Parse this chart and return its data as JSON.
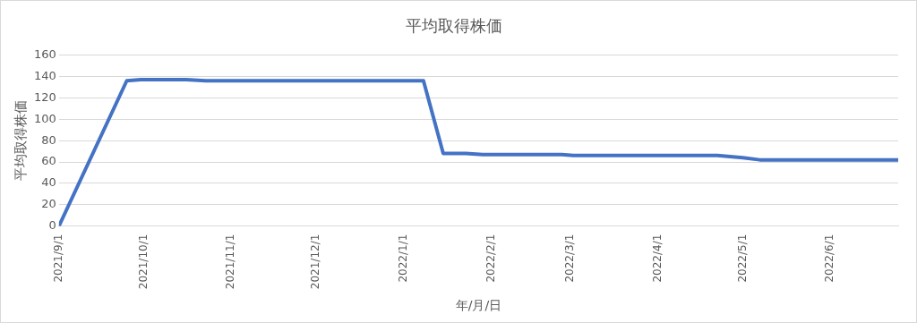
{
  "chart_data": {
    "type": "line",
    "title": "平均取得株価",
    "xlabel": "年/月/日",
    "ylabel": "平均取得株価",
    "x": [
      "2021-09-01",
      "2021-09-25",
      "2021-09-30",
      "2021-10-16",
      "2021-10-23",
      "2022-01-08",
      "2022-01-15",
      "2022-01-23",
      "2022-01-29",
      "2022-02-26",
      "2022-03-02",
      "2022-04-22",
      "2022-05-01",
      "2022-05-07",
      "2022-06-25"
    ],
    "series": [
      {
        "color": "#4472c4",
        "values": [
          0,
          136,
          137,
          137,
          136,
          136,
          68,
          68,
          67,
          67,
          66,
          66,
          64,
          62,
          62
        ]
      }
    ],
    "xlim": [
      "2021-09-01",
      "2022-06-25"
    ],
    "xticks": [
      {
        "value": "2021-09-01",
        "label": "2021/9/1"
      },
      {
        "value": "2021-10-01",
        "label": "2021/10/1"
      },
      {
        "value": "2021-11-01",
        "label": "2021/11/1"
      },
      {
        "value": "2021-12-01",
        "label": "2021/12/1"
      },
      {
        "value": "2022-01-01",
        "label": "2022/1/1"
      },
      {
        "value": "2022-02-01",
        "label": "2022/2/1"
      },
      {
        "value": "2022-03-01",
        "label": "2022/3/1"
      },
      {
        "value": "2022-04-01",
        "label": "2022/4/1"
      },
      {
        "value": "2022-05-01",
        "label": "2022/5/1"
      },
      {
        "value": "2022-06-01",
        "label": "2022/6/1"
      }
    ],
    "ylim": [
      0,
      160
    ],
    "yticks": [
      0,
      20,
      40,
      60,
      80,
      100,
      120,
      140,
      160
    ],
    "grid": "y",
    "legend": false,
    "marker": "none",
    "line_style": "solid"
  }
}
